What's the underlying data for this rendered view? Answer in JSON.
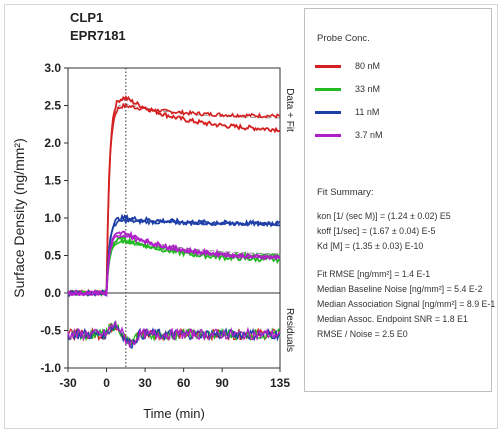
{
  "chart_data": {
    "type": "line",
    "title": "CLP1",
    "subtitle": "EPR7181",
    "xlabel": "Time (min)",
    "ylabel": "Surface Density (ng/mm²)",
    "right_label_top": "Data + Fit",
    "right_label_bottom": "Residuals",
    "xlim": [
      -30,
      135
    ],
    "ylim": [
      -1.0,
      3.0
    ],
    "x_ticks": [
      -30,
      0,
      30,
      60,
      90,
      135
    ],
    "x_tick_labels": [
      "-30",
      "0",
      "30",
      "60",
      "90",
      "135"
    ],
    "y_ticks": [
      -1.0,
      -0.5,
      0.0,
      0.5,
      1.0,
      1.5,
      2.0,
      2.5,
      3.0
    ],
    "y_tick_labels": [
      "-1.0",
      "-0.5",
      "0.0",
      "0.5",
      "1.0",
      "1.5",
      "2.0",
      "2.5",
      "3.0"
    ],
    "injection_end_x": 15,
    "zero_line_y": 0.0,
    "series": [
      {
        "name": "80 nM",
        "color": "#d42020",
        "plateau": 2.6,
        "end": 2.15,
        "replicate_end": 2.35,
        "fit_end": 2.32
      },
      {
        "name": "33 nM",
        "color": "#22bb22",
        "plateau": 0.72,
        "end": 0.42,
        "replicate_end": 0.48,
        "fit_end": 0.45
      },
      {
        "name": "11 nM",
        "color": "#1f3fa8",
        "plateau": 1.0,
        "end": 0.92,
        "replicate_end": 0.92,
        "fit_end": 0.92
      },
      {
        "name": "3.7 nM",
        "color": "#b020c8",
        "plateau": 0.8,
        "end": 0.45,
        "replicate_end": 0.45,
        "fit_end": 0.5
      }
    ],
    "residual_level": -0.55
  },
  "legend": {
    "title": "Probe Conc.",
    "items": [
      {
        "label": "80 nM",
        "color": "#d42020"
      },
      {
        "label": "33 nM",
        "color": "#22bb22"
      },
      {
        "label": "11 nM",
        "color": "#1f3fa8"
      },
      {
        "label": "3.7 nM",
        "color": "#b020c8"
      }
    ]
  },
  "fit_summary": {
    "title": "Fit Summary:",
    "lines": [
      "kon  [1/ (sec M)]  =  (1.24 ± 0.02) E5",
      "koff  [1/sec]  =  (1.67 ± 0.04) E-5",
      "Kd  [M]  =  (1.35 ± 0.03) E-10",
      "Fit RMSE [ng/mm²]  =  1.4 E-1",
      "Median Baseline Noise [ng/mm²]  =  5.4 E-2",
      "Median Association Signal [ng/mm²]  =  8.9 E-1",
      "Median Assoc. Endpoint SNR  =  1.8 E1",
      "RMSE / Noise  =  2.5 E0"
    ]
  }
}
